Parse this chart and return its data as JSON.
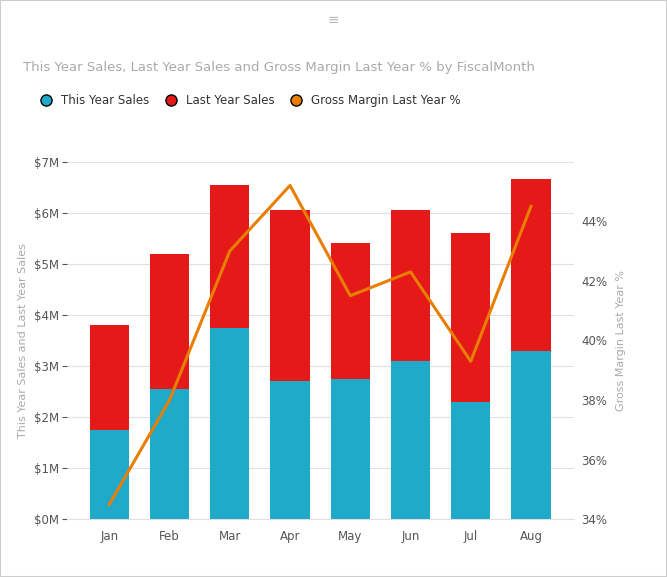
{
  "months": [
    "Jan",
    "Feb",
    "Mar",
    "Apr",
    "May",
    "Jun",
    "Jul",
    "Aug"
  ],
  "this_year_sales": [
    1750000,
    2550000,
    3750000,
    2700000,
    2750000,
    3100000,
    2300000,
    3300000
  ],
  "last_year_sales": [
    2050000,
    2650000,
    2800000,
    3350000,
    2650000,
    2950000,
    3300000,
    3350000
  ],
  "gross_margin_pct": [
    34.5,
    38.0,
    43.0,
    45.2,
    41.5,
    42.3,
    39.3,
    44.5
  ],
  "cyan_color": "#1EAAC8",
  "red_color": "#E61919",
  "orange_color": "#E87E04",
  "background_color": "#FFFFFF",
  "grid_color": "#E0E0E0",
  "border_color": "#CCCCCC",
  "title": "This Year Sales, Last Year Sales and Gross Margin Last Year % by FiscalMonth",
  "title_color": "#AAAAAA",
  "ylabel_left": "This Year Sales and Last Year Sales",
  "ylabel_right": "Gross Margin Last Year %",
  "ylabel_color": "#AAAAAA",
  "legend_labels": [
    "This Year Sales",
    "Last Year Sales",
    "Gross Margin Last Year %"
  ],
  "ylim_left": [
    0,
    7000000
  ],
  "ylim_right": [
    34,
    46
  ],
  "yticks_left": [
    0,
    1000000,
    2000000,
    3000000,
    4000000,
    5000000,
    6000000,
    7000000
  ],
  "yticks_right": [
    34,
    36,
    38,
    40,
    42,
    44
  ],
  "title_fontsize": 9.5,
  "label_fontsize": 8,
  "tick_fontsize": 8.5,
  "legend_fontsize": 8.5,
  "bar_width": 0.65
}
